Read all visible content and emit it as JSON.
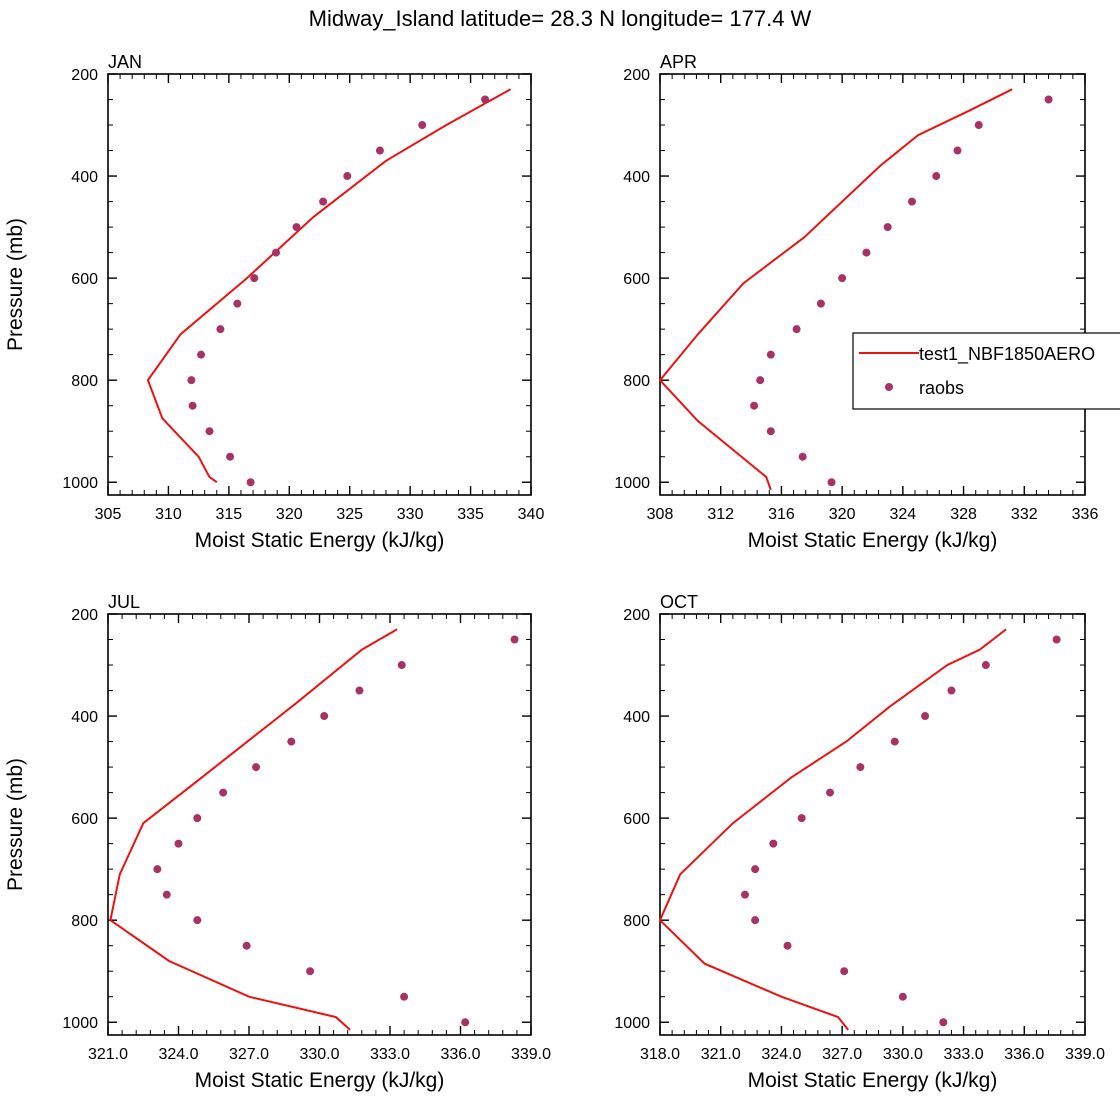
{
  "figure": {
    "title": "Midway_Island  latitude= 28.3 N longitude= 177.4 W",
    "line_color": "#ee1111",
    "point_color": "#a83264",
    "legend": {
      "placement": "right of APR panel",
      "entries": [
        {
          "label": "test1_NBF1850AERO",
          "kind": "line"
        },
        {
          "label": "raobs",
          "kind": "marker"
        }
      ]
    }
  },
  "chart_data": [
    {
      "type": "line",
      "title": "JAN",
      "xlabel": "Moist Static Energy (kJ/kg)",
      "ylabel": "Pressure (mb)",
      "xlim": [
        305,
        340
      ],
      "ylim": [
        1025,
        200
      ],
      "xticks": [
        305,
        310,
        315,
        320,
        325,
        330,
        335,
        340
      ],
      "xtick_labels": [
        "305",
        "310",
        "315",
        "320",
        "325",
        "330",
        "335",
        "340"
      ],
      "yticks": [
        200,
        400,
        600,
        800,
        1000
      ],
      "ytick_labels": [
        "200",
        "400",
        "600",
        "800",
        "1000"
      ],
      "series": [
        {
          "name": "test1_NBF1850AERO",
          "style": "line",
          "x": [
            314.0,
            313.4,
            312.5,
            309.5,
            308.3,
            311.0,
            316.5,
            322.0,
            328.0,
            333.0,
            338.3
          ],
          "y": [
            1000,
            990,
            950,
            875,
            800,
            710,
            600,
            480,
            370,
            300,
            230
          ]
        },
        {
          "name": "raobs",
          "style": "marker",
          "x": [
            316.8,
            315.1,
            313.4,
            312.0,
            311.9,
            312.7,
            314.3,
            315.7,
            317.1,
            318.9,
            320.6,
            322.8,
            324.8,
            327.5,
            331.0,
            336.2
          ],
          "y": [
            1000,
            950,
            900,
            850,
            800,
            750,
            700,
            650,
            600,
            550,
            500,
            450,
            400,
            350,
            300,
            250
          ]
        }
      ]
    },
    {
      "type": "line",
      "title": "APR",
      "xlabel": "Moist Static Energy (kJ/kg)",
      "ylabel": "",
      "xlim": [
        308,
        336
      ],
      "ylim": [
        1025,
        200
      ],
      "xticks": [
        308,
        312,
        316,
        320,
        324,
        328,
        332,
        336
      ],
      "xtick_labels": [
        "308",
        "312",
        "316",
        "320",
        "324",
        "328",
        "332",
        "336"
      ],
      "yticks": [
        200,
        400,
        600,
        800,
        1000
      ],
      "ytick_labels": [
        "200",
        "400",
        "600",
        "800",
        "1000"
      ],
      "series": [
        {
          "name": "test1_NBF1850AERO",
          "style": "line",
          "x": [
            315.3,
            315.0,
            310.5,
            308.0,
            310.5,
            313.5,
            317.5,
            322.5,
            325.0,
            328.5,
            331.2
          ],
          "y": [
            1015,
            990,
            880,
            800,
            710,
            610,
            520,
            380,
            320,
            270,
            230
          ]
        },
        {
          "name": "raobs",
          "style": "marker",
          "x": [
            319.3,
            317.4,
            315.3,
            314.2,
            314.6,
            315.3,
            317.0,
            318.6,
            320.0,
            321.6,
            323.0,
            324.6,
            326.2,
            327.6,
            329.0,
            333.6
          ],
          "y": [
            1000,
            950,
            900,
            850,
            800,
            750,
            700,
            650,
            600,
            550,
            500,
            450,
            400,
            350,
            300,
            250
          ]
        }
      ]
    },
    {
      "type": "line",
      "title": "JUL",
      "xlabel": "Moist Static Energy (kJ/kg)",
      "ylabel": "Pressure (mb)",
      "xlim": [
        321,
        339
      ],
      "ylim": [
        1025,
        200
      ],
      "xticks": [
        321,
        324,
        327,
        330,
        333,
        336,
        339
      ],
      "xtick_labels": [
        "321.0",
        "324.0",
        "327.0",
        "330.0",
        "333.0",
        "336.0",
        "339.0"
      ],
      "yticks": [
        200,
        400,
        600,
        800,
        1000
      ],
      "ytick_labels": [
        "200",
        "400",
        "600",
        "800",
        "1000"
      ],
      "series": [
        {
          "name": "test1_NBF1850AERO",
          "style": "line",
          "x": [
            331.3,
            330.7,
            327.0,
            323.6,
            321.1,
            321.5,
            322.5,
            325.0,
            329.0,
            331.8,
            333.3
          ],
          "y": [
            1015,
            990,
            950,
            880,
            800,
            710,
            610,
            520,
            375,
            270,
            230
          ]
        },
        {
          "name": "raobs",
          "style": "marker",
          "x": [
            336.2,
            333.6,
            329.6,
            326.9,
            324.8,
            323.5,
            323.1,
            324.0,
            324.8,
            325.9,
            327.3,
            328.8,
            330.2,
            331.7,
            333.5,
            338.3
          ],
          "y": [
            1000,
            950,
            900,
            850,
            800,
            750,
            700,
            650,
            600,
            550,
            500,
            450,
            400,
            350,
            300,
            250
          ]
        }
      ]
    },
    {
      "type": "line",
      "title": "OCT",
      "xlabel": "Moist Static Energy (kJ/kg)",
      "ylabel": "",
      "xlim": [
        318,
        339
      ],
      "ylim": [
        1025,
        200
      ],
      "xticks": [
        318,
        321,
        324,
        327,
        330,
        333,
        336,
        339
      ],
      "xtick_labels": [
        "318.0",
        "321.0",
        "324.0",
        "327.0",
        "330.0",
        "333.0",
        "336.0",
        "339.0"
      ],
      "yticks": [
        200,
        400,
        600,
        800,
        1000
      ],
      "ytick_labels": [
        "200",
        "400",
        "600",
        "800",
        "1000"
      ],
      "series": [
        {
          "name": "test1_NBF1850AERO",
          "style": "line",
          "x": [
            327.3,
            326.8,
            324.0,
            320.2,
            318.0,
            319.0,
            321.6,
            324.5,
            327.2,
            329.4,
            332.2,
            333.8,
            335.1
          ],
          "y": [
            1015,
            990,
            950,
            885,
            800,
            710,
            610,
            520,
            450,
            380,
            300,
            270,
            230
          ]
        },
        {
          "name": "raobs",
          "style": "marker",
          "x": [
            332.0,
            330.0,
            327.1,
            324.3,
            322.7,
            322.2,
            322.7,
            323.6,
            325.0,
            326.4,
            327.9,
            329.6,
            331.1,
            332.4,
            334.1,
            337.6
          ],
          "y": [
            1000,
            950,
            900,
            850,
            800,
            750,
            700,
            650,
            600,
            550,
            500,
            450,
            400,
            350,
            300,
            250
          ]
        }
      ]
    }
  ]
}
